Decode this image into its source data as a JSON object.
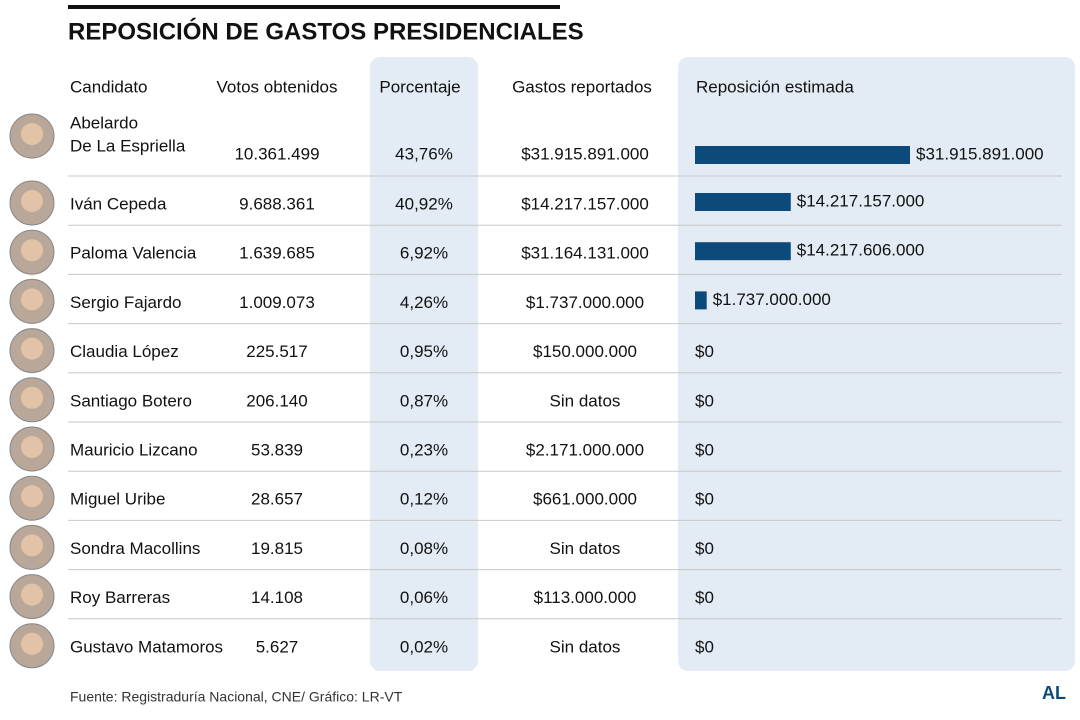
{
  "header": {
    "title": "REPOSICIÓN DE GASTOS PRESIDENCIALES"
  },
  "table": {
    "columns": [
      "Candidato",
      "Votos obtenidos",
      "Porcentaje",
      "Gastos reportados",
      "Reposición estimada"
    ],
    "rows": [
      {
        "name": [
          "Abelardo",
          "De La Espriella"
        ],
        "votes": "10.361.499",
        "pct": "43,76%",
        "spent": "$31.915.891.000",
        "refund": {
          "value": 31915891000,
          "label": "$31.915.891.000"
        }
      },
      {
        "name": [
          "Iván Cepeda"
        ],
        "votes": "9.688.361",
        "pct": "40,92%",
        "spent": "$14.217.157.000",
        "refund": {
          "value": 14217157000,
          "label": "$14.217.157.000"
        }
      },
      {
        "name": [
          "Paloma Valencia"
        ],
        "votes": "1.639.685",
        "pct": "6,92%",
        "spent": "$31.164.131.000",
        "refund": {
          "value": 14217606000,
          "label": "$14.217.606.000"
        }
      },
      {
        "name": [
          "Sergio Fajardo"
        ],
        "votes": "1.009.073",
        "pct": "4,26%",
        "spent": "$1.737.000.000",
        "refund": {
          "value": 1737000000,
          "label": "$1.737.000.000"
        }
      },
      {
        "name": [
          "Claudia López"
        ],
        "votes": "225.517",
        "pct": "0,95%",
        "spent": "$150.000.000",
        "refund": {
          "value": 0,
          "label": "$0"
        }
      },
      {
        "name": [
          "Santiago Botero"
        ],
        "votes": "206.140",
        "pct": "0,87%",
        "spent": "Sin datos",
        "refund": {
          "value": 0,
          "label": "$0"
        }
      },
      {
        "name": [
          "Mauricio Lizcano"
        ],
        "votes": "53.839",
        "pct": "0,23%",
        "spent": "$2.171.000.000",
        "refund": {
          "value": 0,
          "label": "$0"
        }
      },
      {
        "name": [
          "Miguel Uribe"
        ],
        "votes": "28.657",
        "pct": "0,12%",
        "spent": "$661.000.000",
        "refund": {
          "value": 0,
          "label": "$0"
        }
      },
      {
        "name": [
          "Sondra Macollins"
        ],
        "votes": "19.815",
        "pct": "0,08%",
        "spent": "Sin datos",
        "refund": {
          "value": 0,
          "label": "$0"
        }
      },
      {
        "name": [
          "Roy Barreras"
        ],
        "votes": "14.108",
        "pct": "0,06%",
        "spent": "$113.000.000",
        "refund": {
          "value": 0,
          "label": "$0"
        }
      },
      {
        "name": [
          "Gustavo Matamoros"
        ],
        "votes": "5.627",
        "pct": "0,02%",
        "spent": "Sin datos",
        "refund": {
          "value": 0,
          "label": "$0"
        }
      }
    ],
    "bar_color": "#0d4a7c"
  },
  "footer": {
    "source": "Fuente: Registraduría Nacional, CNE/ Gráfico: LR-VT",
    "logo": "AL"
  }
}
